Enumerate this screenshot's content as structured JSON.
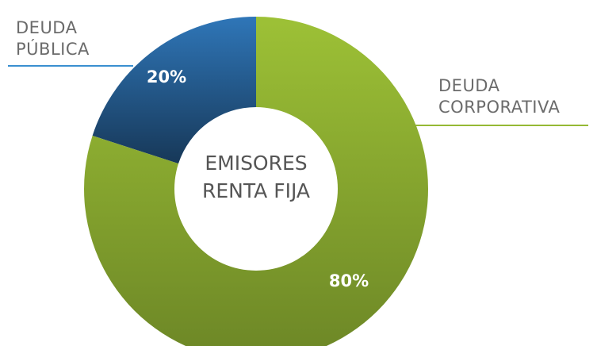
{
  "chart_data": {
    "type": "pie",
    "donut": true,
    "title": "EMISORES RENTA FIJA",
    "categories": [
      "DEUDA PÚBLICA",
      "DEUDA CORPORATIVA"
    ],
    "values": [
      20,
      80
    ],
    "value_labels": [
      "20%",
      "80%"
    ],
    "colors": [
      "#2c6dad",
      "#95b934"
    ]
  }
}
